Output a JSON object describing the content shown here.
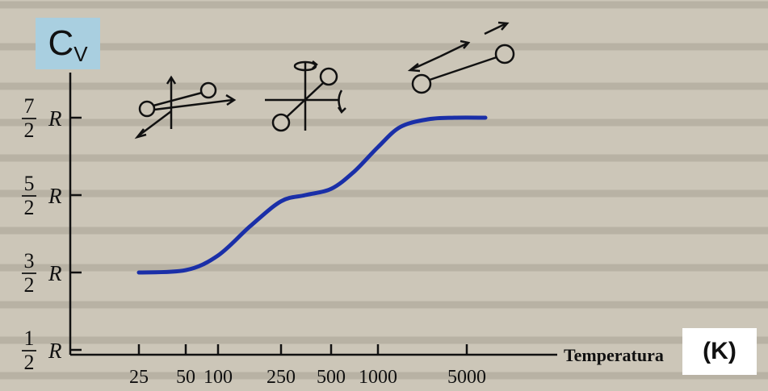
{
  "chart_data": {
    "type": "line",
    "ylabel_symbol": "C",
    "ylabel_subscript": "V",
    "xlabel": "Temperatura",
    "xunit": "(K)",
    "x_ticks": [
      "25",
      "50",
      "100",
      "250",
      "500",
      "1000",
      "5000"
    ],
    "y_ticks": [
      {
        "num": "1",
        "den": "2",
        "unit": "R",
        "value": 0.5
      },
      {
        "num": "3",
        "den": "2",
        "unit": "R",
        "value": 1.5
      },
      {
        "num": "5",
        "den": "2",
        "unit": "R",
        "value": 2.5
      },
      {
        "num": "7",
        "den": "2",
        "unit": "R",
        "value": 3.5
      }
    ],
    "x_scale": "log",
    "series": [
      {
        "color": "#1a2fa8",
        "x": [
          25,
          50,
          100,
          160,
          250,
          350,
          500,
          700,
          1000,
          1500,
          2500,
          4000,
          7000
        ],
        "y": [
          1.5,
          1.53,
          1.72,
          2.1,
          2.42,
          2.5,
          2.58,
          2.8,
          3.12,
          3.38,
          3.48,
          3.5,
          3.5
        ]
      }
    ],
    "annotations": [
      "translational-motion-diagram",
      "rotational-motion-diagram",
      "vibrational-motion-diagram"
    ]
  }
}
